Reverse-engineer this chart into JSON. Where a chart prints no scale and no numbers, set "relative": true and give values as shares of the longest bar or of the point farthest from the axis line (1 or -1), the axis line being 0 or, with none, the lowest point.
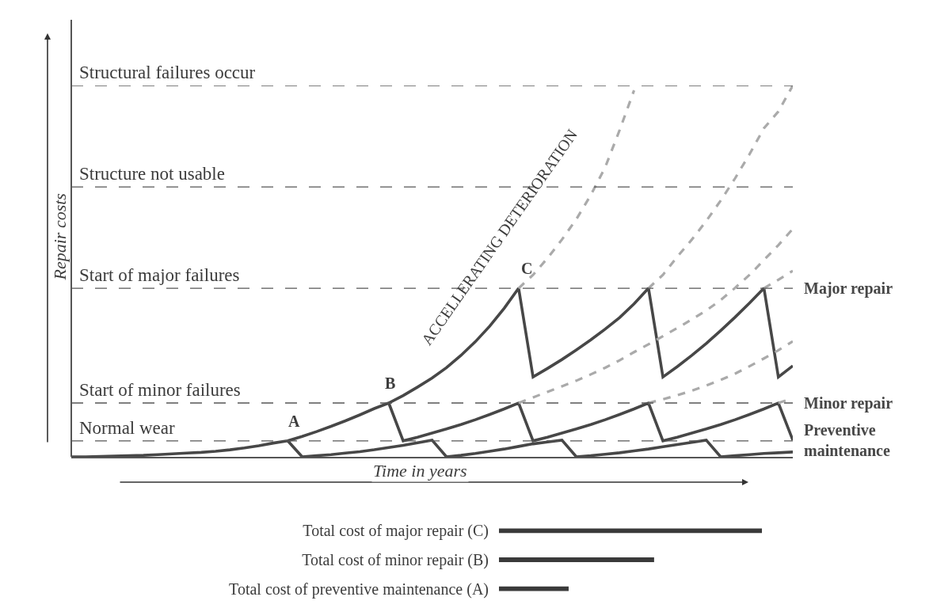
{
  "chart_data": [
    {
      "type": "line",
      "relative": true,
      "tick_labels": false,
      "xlabel": "Time in years",
      "ylabel": "Repair costs",
      "categories": [
        null,
        null,
        null,
        null,
        null,
        null,
        null,
        null,
        null,
        null,
        null,
        null,
        null,
        null,
        null,
        null,
        null,
        null,
        null,
        null,
        null,
        null,
        null,
        null,
        null,
        null,
        null,
        null,
        null,
        null,
        null,
        null,
        null,
        null,
        null,
        null,
        null,
        null,
        null,
        null,
        null,
        null,
        null,
        null,
        null,
        null,
        null,
        null,
        null,
        null,
        null
      ],
      "series": [
        {
          "name": "Major repair",
          "color": "#474747",
          "line_style": "solid",
          "values": [
            0,
            0,
            0.001,
            0.002,
            0.003,
            0.004,
            0.006,
            0.008,
            0.01,
            0.012,
            0.015,
            0.019,
            0.024,
            0.03,
            0.037,
            0.043,
            0.055,
            0.068,
            0.082,
            0.097,
            0.113,
            0.13,
            0.145,
            0.165,
            0.188,
            0.212,
            0.24,
            0.273,
            0.31,
            0.352,
            0.4,
            0.454,
            0.215,
            0.238,
            0.262,
            0.288,
            0.315,
            0.344,
            0.375,
            0.412,
            0.454,
            0.215,
            0.243,
            0.273,
            0.305,
            0.34,
            0.376,
            0.414,
            0.454,
            0.215,
            0.245
          ]
        },
        {
          "name": "Minor repair",
          "color": "#474747",
          "line_style": "solid",
          "values": [
            null,
            null,
            null,
            null,
            null,
            null,
            null,
            null,
            null,
            null,
            null,
            null,
            null,
            null,
            null,
            null,
            null,
            null,
            null,
            null,
            null,
            null,
            0.145,
            0.043,
            0.053,
            0.064,
            0.075,
            0.087,
            0.1,
            0.114,
            0.129,
            0.145,
            0.043,
            0.053,
            0.064,
            0.075,
            0.087,
            0.1,
            0.114,
            0.129,
            0.145,
            0.043,
            0.053,
            0.064,
            0.075,
            0.087,
            0.1,
            0.114,
            0.129,
            0.145,
            0.045
          ]
        },
        {
          "name": "Preventive maintenance",
          "color": "#474747",
          "line_style": "solid",
          "values": [
            null,
            null,
            null,
            null,
            null,
            null,
            null,
            null,
            null,
            null,
            null,
            null,
            null,
            null,
            null,
            0.043,
            0,
            0.003,
            0.006,
            0.01,
            0.014,
            0.019,
            0.025,
            0.031,
            0.038,
            0.045,
            0,
            0.004,
            0.009,
            0.015,
            0.021,
            0.028,
            0.035,
            0.04,
            0.045,
            0,
            0.003,
            0.007,
            0.011,
            0.016,
            0.021,
            0.027,
            0.033,
            0.039,
            0.045,
            0,
            0.003,
            0.006,
            0.009,
            0.011,
            0.013
          ]
        },
        {
          "color": "#aaaaaa",
          "line_style": "dashed",
          "values": [
            null,
            null,
            null,
            null,
            null,
            null,
            null,
            null,
            null,
            null,
            null,
            null,
            null,
            null,
            null,
            null,
            null,
            null,
            null,
            null,
            null,
            null,
            null,
            null,
            null,
            null,
            null,
            null,
            null,
            null,
            null,
            0.454,
            0.49,
            0.535,
            0.585,
            0.64,
            0.705,
            0.78,
            0.88,
            0.987,
            null,
            null,
            null,
            null,
            null,
            null,
            null,
            null,
            null,
            null,
            null
          ]
        },
        {
          "color": "#aaaaaa",
          "line_style": "dashed",
          "values": [
            null,
            null,
            null,
            null,
            null,
            null,
            null,
            null,
            null,
            null,
            null,
            null,
            null,
            null,
            null,
            null,
            null,
            null,
            null,
            null,
            null,
            null,
            null,
            null,
            null,
            null,
            null,
            null,
            null,
            null,
            null,
            null,
            null,
            null,
            null,
            null,
            null,
            null,
            null,
            null,
            0.454,
            0.49,
            0.539,
            0.585,
            0.635,
            0.69,
            0.75,
            0.815,
            0.885,
            0.93,
            1
          ]
        },
        {
          "color": "#aaaaaa",
          "line_style": "dashed",
          "values": [
            null,
            null,
            null,
            null,
            null,
            null,
            null,
            null,
            null,
            null,
            null,
            null,
            null,
            null,
            null,
            null,
            null,
            null,
            null,
            null,
            null,
            null,
            null,
            null,
            null,
            null,
            null,
            null,
            null,
            null,
            null,
            0.145,
            0.16,
            0.175,
            0.19,
            0.205,
            0.222,
            0.24,
            0.26,
            0.282,
            0.303,
            0.325,
            0.347,
            0.37,
            0.394,
            0.422,
            0.455,
            0.49,
            0.53,
            0.57,
            0.614
          ]
        },
        {
          "color": "#aaaaaa",
          "line_style": "dashed",
          "values": [
            null,
            null,
            null,
            null,
            null,
            null,
            null,
            null,
            null,
            null,
            null,
            null,
            null,
            null,
            null,
            null,
            null,
            null,
            null,
            null,
            null,
            null,
            null,
            null,
            null,
            null,
            null,
            null,
            null,
            null,
            null,
            null,
            null,
            null,
            null,
            null,
            null,
            null,
            null,
            null,
            0.145,
            0.155,
            0.166,
            0.178,
            0.192,
            0.207,
            0.224,
            0.244,
            0.265,
            0.287,
            0.311
          ]
        },
        {
          "color": "#aaaaaa",
          "line_style": "dashed",
          "values": [
            null,
            null,
            null,
            null,
            null,
            null,
            null,
            null,
            null,
            null,
            null,
            null,
            null,
            null,
            null,
            null,
            null,
            null,
            null,
            null,
            null,
            null,
            null,
            null,
            null,
            null,
            null,
            null,
            null,
            null,
            null,
            null,
            null,
            null,
            null,
            null,
            null,
            null,
            null,
            null,
            null,
            null,
            null,
            null,
            null,
            null,
            null,
            null,
            0.454,
            0.477,
            0.501
          ]
        },
        {
          "color": "#aaaaaa",
          "line_style": "dashed",
          "values": [
            null,
            null,
            null,
            null,
            null,
            null,
            null,
            null,
            null,
            null,
            null,
            null,
            null,
            null,
            null,
            null,
            null,
            null,
            null,
            null,
            null,
            null,
            null,
            null,
            null,
            null,
            null,
            null,
            null,
            null,
            null,
            null,
            null,
            null,
            null,
            null,
            null,
            null,
            null,
            null,
            null,
            null,
            null,
            null,
            null,
            null,
            null,
            null,
            null,
            0.145,
            0.158
          ]
        }
      ],
      "ref_lines": [
        {
          "axis": "y",
          "value": 0.043,
          "label": "Normal wear",
          "color": "#555555",
          "line_style": "dashed"
        },
        {
          "axis": "y",
          "value": 0.145,
          "label": "Start of minor failures",
          "color": "#555555",
          "line_style": "dashed"
        },
        {
          "axis": "y",
          "value": 0.454,
          "label": "Start of major failures",
          "color": "#555555",
          "line_style": "dashed"
        },
        {
          "axis": "y",
          "value": 0.727,
          "label": "Structure not usable",
          "color": "#555555",
          "line_style": "dashed"
        },
        {
          "axis": "y",
          "value": 1,
          "label": "Structural failures occur",
          "color": "#555555",
          "line_style": "dashed"
        }
      ],
      "annotations": [
        "A",
        "B",
        "C",
        "ACCELLERATING DETERIORATION"
      ]
    },
    {
      "type": "bar",
      "orientation": "horizontal",
      "relative": true,
      "tick_labels": "y",
      "color": "#3a3a3a",
      "categories": [
        "Total cost of major repair (C)",
        "Total cost of minor repair (B)",
        "Total cost of preventive maintenance (A)"
      ],
      "values": [
        1,
        0.59,
        0.265
      ]
    }
  ]
}
